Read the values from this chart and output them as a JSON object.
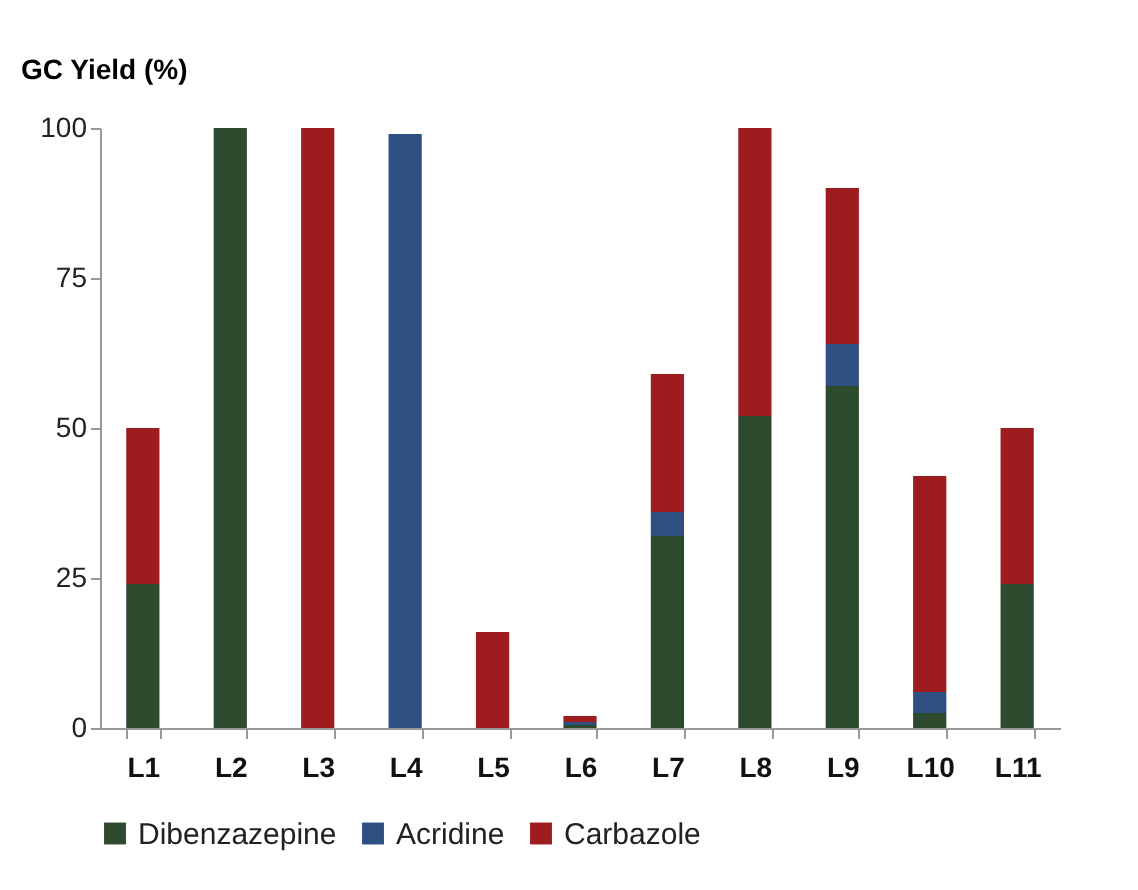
{
  "chart_data": {
    "type": "bar",
    "stacked": true,
    "ylabel": "GC Yield (%)",
    "categories": [
      "L1",
      "L2",
      "L3",
      "L4",
      "L5",
      "L6",
      "L7",
      "L8",
      "L9",
      "L10",
      "L11"
    ],
    "series": [
      {
        "name": "Dibenzazepine",
        "color": "#2e4a2e",
        "values": [
          24,
          100,
          0,
          0,
          0,
          0.5,
          32,
          52,
          57,
          2.5,
          24
        ]
      },
      {
        "name": "Acridine",
        "color": "#2e4f82",
        "values": [
          0,
          0,
          0,
          99,
          0,
          0.5,
          4,
          0,
          7,
          3.5,
          0
        ]
      },
      {
        "name": "Carbazole",
        "color": "#9e1b1e",
        "values": [
          26,
          0,
          100,
          0,
          16,
          1,
          23,
          48,
          26,
          36,
          26
        ]
      }
    ],
    "ylim": [
      0,
      100
    ],
    "yticks": [
      0,
      25,
      50,
      75,
      100
    ],
    "grid": false,
    "legend": "bottom"
  }
}
